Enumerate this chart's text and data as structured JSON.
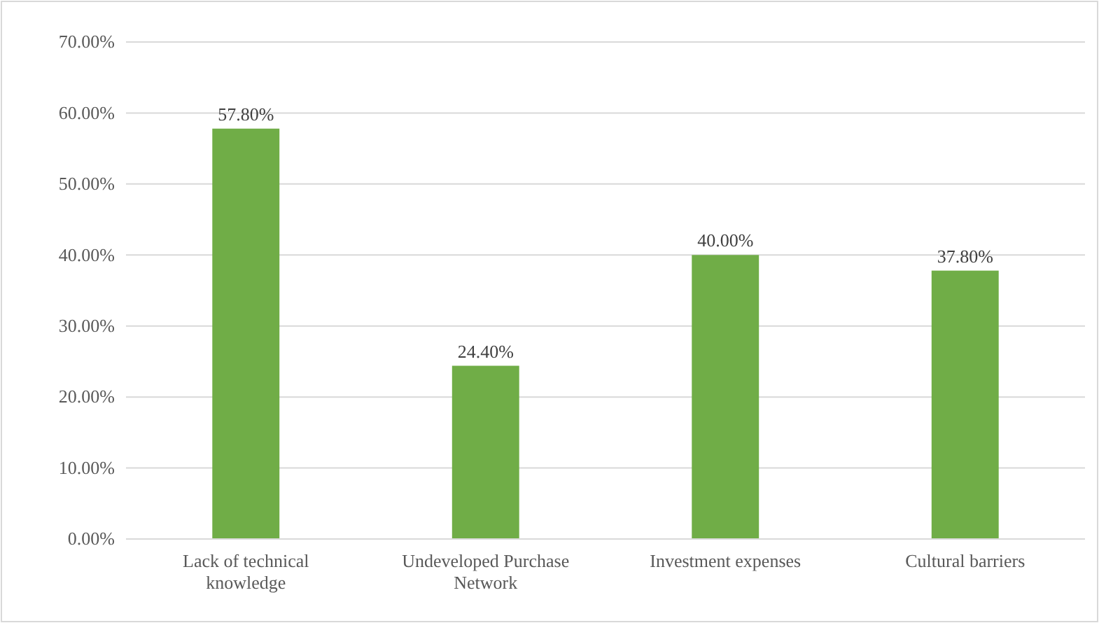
{
  "chart_data": {
    "type": "bar",
    "categories": [
      "Lack of technical knowledge",
      "Undeveloped Purchase Network",
      "Investment expenses",
      "Cultural barriers"
    ],
    "values": [
      57.8,
      24.4,
      40,
      37.8
    ],
    "value_labels": [
      "57.80%",
      "24.40%",
      "40.00%",
      "37.80%"
    ],
    "color": "#70ad47",
    "ylim": [
      0,
      70
    ],
    "yticks": [
      {
        "value": 0,
        "label": "0.00%"
      },
      {
        "value": 10,
        "label": "10.00%"
      },
      {
        "value": 20,
        "label": "20.00%"
      },
      {
        "value": 30,
        "label": "30.00%"
      },
      {
        "value": 40,
        "label": "40.00%"
      },
      {
        "value": 50,
        "label": "50.00%"
      },
      {
        "value": 60,
        "label": "60.00%"
      },
      {
        "value": 70,
        "label": "70.00%"
      }
    ],
    "grid": "y"
  }
}
